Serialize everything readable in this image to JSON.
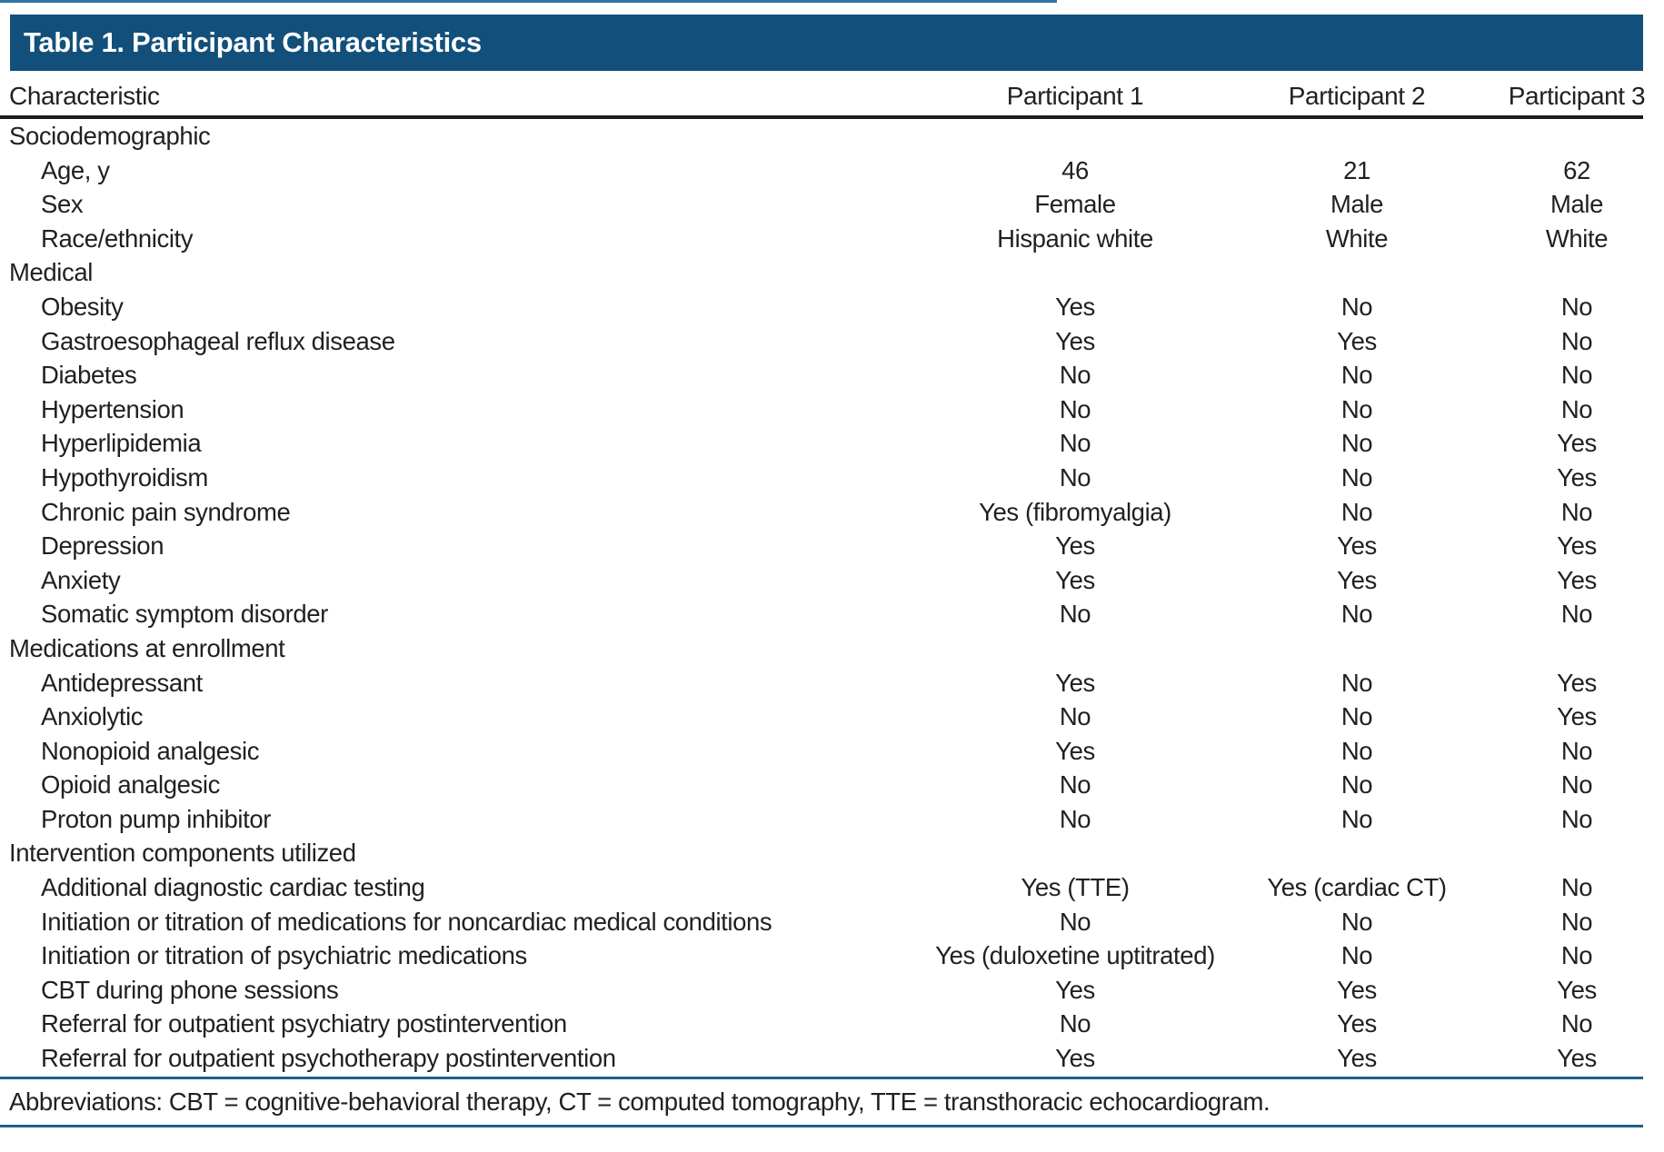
{
  "title": "Table 1. Participant Characteristics",
  "columns": [
    "Characteristic",
    "Participant 1",
    "Participant 2",
    "Participant 3"
  ],
  "sections": [
    {
      "label": "Sociodemographic",
      "rows": [
        {
          "label": "Age, y",
          "values": [
            "46",
            "21",
            "62"
          ]
        },
        {
          "label": "Sex",
          "values": [
            "Female",
            "Male",
            "Male"
          ]
        },
        {
          "label": "Race/ethnicity",
          "values": [
            "Hispanic white",
            "White",
            "White"
          ]
        }
      ]
    },
    {
      "label": "Medical",
      "rows": [
        {
          "label": "Obesity",
          "values": [
            "Yes",
            "No",
            "No"
          ]
        },
        {
          "label": "Gastroesophageal reflux disease",
          "values": [
            "Yes",
            "Yes",
            "No"
          ]
        },
        {
          "label": "Diabetes",
          "values": [
            "No",
            "No",
            "No"
          ]
        },
        {
          "label": "Hypertension",
          "values": [
            "No",
            "No",
            "No"
          ]
        },
        {
          "label": "Hyperlipidemia",
          "values": [
            "No",
            "No",
            "Yes"
          ]
        },
        {
          "label": "Hypothyroidism",
          "values": [
            "No",
            "No",
            "Yes"
          ]
        },
        {
          "label": "Chronic pain syndrome",
          "values": [
            "Yes (fibromyalgia)",
            "No",
            "No"
          ]
        },
        {
          "label": "Depression",
          "values": [
            "Yes",
            "Yes",
            "Yes"
          ]
        },
        {
          "label": "Anxiety",
          "values": [
            "Yes",
            "Yes",
            "Yes"
          ]
        },
        {
          "label": "Somatic symptom disorder",
          "values": [
            "No",
            "No",
            "No"
          ]
        }
      ]
    },
    {
      "label": "Medications at enrollment",
      "rows": [
        {
          "label": "Antidepressant",
          "values": [
            "Yes",
            "No",
            "Yes"
          ]
        },
        {
          "label": "Anxiolytic",
          "values": [
            "No",
            "No",
            "Yes"
          ]
        },
        {
          "label": "Nonopioid analgesic",
          "values": [
            "Yes",
            "No",
            "No"
          ]
        },
        {
          "label": "Opioid analgesic",
          "values": [
            "No",
            "No",
            "No"
          ]
        },
        {
          "label": "Proton pump inhibitor",
          "values": [
            "No",
            "No",
            "No"
          ]
        }
      ]
    },
    {
      "label": "Intervention components utilized",
      "rows": [
        {
          "label": "Additional diagnostic cardiac testing",
          "values": [
            "Yes (TTE)",
            "Yes (cardiac CT)",
            "No"
          ]
        },
        {
          "label": "Initiation or titration of medications for noncardiac medical conditions",
          "values": [
            "No",
            "No",
            "No"
          ]
        },
        {
          "label": "Initiation or titration of psychiatric medications",
          "values": [
            "Yes (duloxetine uptitrated)",
            "No",
            "No"
          ]
        },
        {
          "label": "CBT during phone sessions",
          "values": [
            "Yes",
            "Yes",
            "Yes"
          ]
        },
        {
          "label": "Referral for outpatient psychiatry postintervention",
          "values": [
            "No",
            "Yes",
            "No"
          ]
        },
        {
          "label": "Referral for outpatient psychotherapy postintervention",
          "values": [
            "Yes",
            "Yes",
            "Yes"
          ]
        }
      ]
    }
  ],
  "footnote": "Abbreviations: CBT = cognitive-behavioral therapy, CT = computed tomography, TTE = transthoracic echocardiogram.",
  "colors": {
    "header_bar": "#12507b",
    "top_rule": "#2e75a3",
    "footnote_rules": "#1d6090",
    "header_rule": "#1c1c1c",
    "text": "#231f20"
  }
}
